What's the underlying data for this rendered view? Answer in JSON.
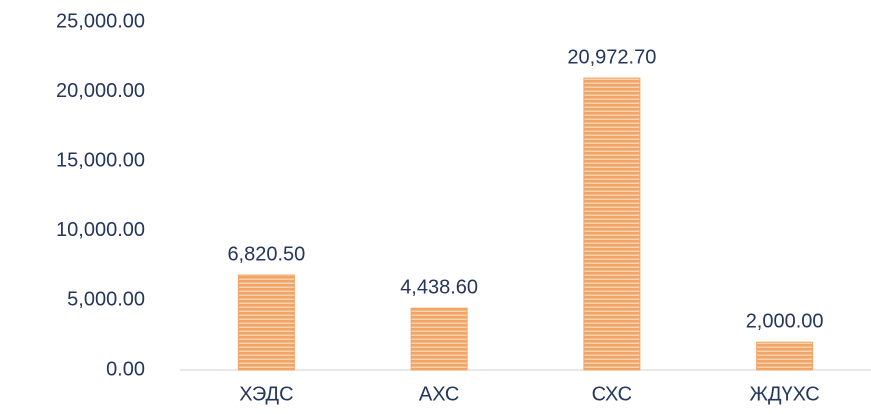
{
  "chart_data": {
    "type": "bar",
    "categories": [
      "ХЭДС",
      "АХС",
      "СХС",
      "ЖДҮХС"
    ],
    "values": [
      6820.5,
      4438.6,
      20972.7,
      2000
    ],
    "value_labels": [
      "6,820.50",
      "4,438.60",
      "20,972.70",
      "2,000.00"
    ],
    "color": "#f2a366",
    "ylim": [
      0,
      25000
    ],
    "yticks": [
      {
        "value": 0,
        "label": "0.00"
      },
      {
        "value": 5000,
        "label": "5,000.00"
      },
      {
        "value": 10000,
        "label": "10,000.00"
      },
      {
        "value": 15000,
        "label": "15,000.00"
      },
      {
        "value": 20000,
        "label": "20,000.00"
      },
      {
        "value": 25000,
        "label": "25,000.00"
      }
    ],
    "grid": false
  }
}
